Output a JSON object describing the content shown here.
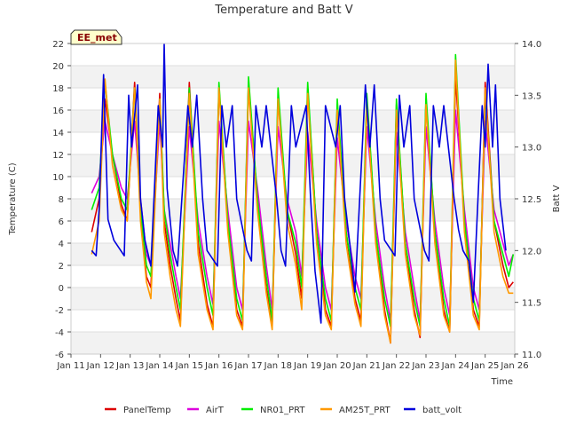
{
  "chart_data": {
    "type": "line",
    "title": "Temperature and Batt V",
    "xlabel": "Time",
    "ylabel": "Temperature (C)",
    "y2label": "Batt V",
    "site_badge": "EE_met",
    "ylim": [
      -6,
      22
    ],
    "y2lim": [
      11.0,
      14.0
    ],
    "xlim": [
      0,
      15
    ],
    "y_ticks": [
      -6,
      -4,
      -2,
      0,
      2,
      4,
      6,
      8,
      10,
      12,
      14,
      16,
      18,
      20,
      22
    ],
    "y2_ticks": [
      "11.0",
      "11.5",
      "12.0",
      "12.5",
      "13.0",
      "13.5",
      "14.0"
    ],
    "x_ticks": [
      "Jan 11",
      "Jan 12",
      "Jan 13",
      "Jan 14",
      "Jan 15",
      "Jan 16",
      "Jan 17",
      "Jan 18",
      "Jan 19",
      "Jan 20",
      "Jan 21",
      "Jan 22",
      "Jan 23",
      "Jan 24",
      "Jan 25",
      "Jan 26"
    ],
    "x_units": "days since Jan 11 00:00",
    "series": [
      {
        "name": "PanelTemp",
        "color": "#dd0000",
        "axis": "left",
        "x": [
          0.7,
          0.95,
          1.15,
          1.4,
          1.7,
          1.9,
          2.15,
          2.35,
          2.55,
          2.7,
          3.0,
          3.15,
          3.35,
          3.55,
          3.7,
          4.0,
          4.3,
          4.6,
          4.8,
          5.0,
          5.3,
          5.6,
          5.8,
          6.0,
          6.3,
          6.6,
          6.8,
          7.0,
          7.3,
          7.6,
          7.8,
          8.0,
          8.3,
          8.6,
          8.8,
          9.0,
          9.3,
          9.6,
          9.8,
          10.0,
          10.3,
          10.6,
          10.8,
          11.0,
          11.3,
          11.6,
          11.8,
          12.0,
          12.3,
          12.6,
          12.8,
          13.0,
          13.3,
          13.6,
          13.8,
          14.0,
          14.3,
          14.6,
          14.8,
          14.95
        ],
        "y": [
          5.0,
          8.0,
          17.0,
          12.0,
          7.5,
          6.0,
          18.5,
          7.0,
          1.0,
          0.0,
          17.5,
          6.0,
          2.0,
          -1.0,
          -3.0,
          18.5,
          4.0,
          -1.5,
          -3.5,
          18.0,
          6.0,
          -2.0,
          -3.5,
          18.5,
          8.0,
          0.0,
          -3.5,
          17.0,
          7.0,
          3.0,
          -1.0,
          18.0,
          5.0,
          -2.0,
          -3.5,
          16.5,
          5.0,
          -1.0,
          -3.0,
          17.0,
          5.0,
          -2.0,
          -5.0,
          16.5,
          4.0,
          -2.0,
          -4.5,
          17.0,
          5.0,
          -2.0,
          -4.0,
          19.0,
          6.0,
          -2.0,
          -3.5,
          18.5,
          6.0,
          2.0,
          0.0,
          0.5
        ]
      },
      {
        "name": "AirT",
        "color": "#dd00dd",
        "axis": "left",
        "x": [
          0.7,
          0.95,
          1.15,
          1.4,
          1.7,
          1.9,
          2.15,
          2.35,
          2.55,
          2.7,
          3.0,
          3.15,
          3.35,
          3.55,
          3.7,
          4.0,
          4.3,
          4.6,
          4.8,
          5.0,
          5.3,
          5.6,
          5.8,
          6.0,
          6.3,
          6.6,
          6.8,
          7.0,
          7.3,
          7.6,
          7.8,
          8.0,
          8.3,
          8.6,
          8.8,
          9.0,
          9.3,
          9.6,
          9.8,
          10.0,
          10.3,
          10.6,
          10.8,
          11.0,
          11.3,
          11.6,
          11.8,
          12.0,
          12.3,
          12.6,
          12.8,
          13.0,
          13.3,
          13.6,
          13.8,
          14.0,
          14.3,
          14.6,
          14.8,
          14.95
        ],
        "y": [
          8.5,
          10.0,
          15.0,
          12.0,
          9.0,
          8.0,
          15.0,
          8.0,
          3.0,
          2.0,
          15.0,
          7.0,
          4.0,
          1.0,
          -1.0,
          14.5,
          6.0,
          1.0,
          -1.5,
          15.0,
          7.0,
          0.0,
          -2.0,
          15.0,
          9.0,
          2.0,
          -2.0,
          14.5,
          8.0,
          5.0,
          1.0,
          14.0,
          6.0,
          0.0,
          -2.0,
          13.5,
          6.0,
          1.0,
          -1.0,
          14.5,
          6.0,
          0.0,
          -3.0,
          14.0,
          5.0,
          0.0,
          -3.0,
          14.5,
          6.0,
          0.0,
          -2.5,
          16.0,
          7.0,
          0.0,
          -2.0,
          15.0,
          7.0,
          4.0,
          2.0,
          3.0
        ]
      },
      {
        "name": "NR01_PRT",
        "color": "#00ee00",
        "axis": "left",
        "x": [
          0.7,
          0.95,
          1.15,
          1.4,
          1.7,
          1.9,
          2.15,
          2.35,
          2.55,
          2.7,
          3.0,
          3.15,
          3.35,
          3.55,
          3.7,
          4.0,
          4.3,
          4.6,
          4.8,
          5.0,
          5.3,
          5.6,
          5.8,
          6.0,
          6.3,
          6.6,
          6.8,
          7.0,
          7.3,
          7.6,
          7.8,
          8.0,
          8.3,
          8.6,
          8.8,
          9.0,
          9.3,
          9.6,
          9.8,
          10.0,
          10.3,
          10.6,
          10.8,
          11.0,
          11.3,
          11.6,
          11.8,
          12.0,
          12.3,
          12.6,
          12.8,
          13.0,
          13.3,
          13.6,
          13.8,
          14.0,
          14.3,
          14.6,
          14.8,
          14.95
        ],
        "y": [
          7.0,
          9.0,
          18.5,
          12.0,
          8.0,
          7.0,
          18.0,
          7.0,
          2.0,
          1.0,
          17.0,
          7.0,
          3.0,
          0.0,
          -2.0,
          18.0,
          5.0,
          0.0,
          -2.5,
          18.5,
          6.0,
          -1.0,
          -3.0,
          19.0,
          8.0,
          1.0,
          -3.0,
          18.0,
          7.0,
          4.0,
          0.0,
          18.5,
          5.0,
          -1.0,
          -3.0,
          17.0,
          5.0,
          0.0,
          -2.0,
          17.5,
          5.0,
          -1.0,
          -3.5,
          17.0,
          4.0,
          -1.0,
          -3.5,
          17.5,
          5.0,
          -1.0,
          -3.5,
          21.0,
          6.0,
          -1.0,
          -3.0,
          17.5,
          6.0,
          3.0,
          1.0,
          3.0
        ]
      },
      {
        "name": "AM25T_PRT",
        "color": "#ff9900",
        "axis": "left",
        "x": [
          0.7,
          0.95,
          1.15,
          1.4,
          1.7,
          1.9,
          2.15,
          2.35,
          2.55,
          2.7,
          3.0,
          3.15,
          3.35,
          3.55,
          3.7,
          4.0,
          4.3,
          4.6,
          4.8,
          5.0,
          5.3,
          5.6,
          5.8,
          6.0,
          6.3,
          6.6,
          6.8,
          7.0,
          7.3,
          7.6,
          7.8,
          8.0,
          8.3,
          8.6,
          8.8,
          9.0,
          9.3,
          9.6,
          9.8,
          10.0,
          10.3,
          10.6,
          10.8,
          11.0,
          11.3,
          11.6,
          11.8,
          12.0,
          12.3,
          12.6,
          12.8,
          13.0,
          13.3,
          13.6,
          13.8,
          14.0,
          14.3,
          14.6,
          14.8,
          14.95
        ],
        "y": [
          3.0,
          6.0,
          18.8,
          11.0,
          7.0,
          6.0,
          18.0,
          6.0,
          0.5,
          -1.0,
          17.0,
          5.0,
          1.0,
          -2.0,
          -3.5,
          17.5,
          3.0,
          -2.0,
          -3.8,
          18.0,
          5.0,
          -2.5,
          -3.8,
          18.0,
          7.0,
          -0.5,
          -3.8,
          17.0,
          6.0,
          2.0,
          -2.0,
          17.5,
          4.0,
          -2.5,
          -3.8,
          16.0,
          4.0,
          -1.5,
          -3.5,
          16.5,
          4.0,
          -2.5,
          -5.0,
          16.0,
          3.0,
          -2.5,
          -4.3,
          16.5,
          4.0,
          -2.5,
          -4.0,
          20.5,
          5.0,
          -2.5,
          -3.8,
          18.0,
          5.0,
          1.0,
          -0.5,
          -0.5
        ]
      },
      {
        "name": "batt_volt",
        "color": "#0000dd",
        "axis": "right",
        "x": [
          0.7,
          0.85,
          0.95,
          1.1,
          1.25,
          1.45,
          1.8,
          1.95,
          2.05,
          2.25,
          2.35,
          2.5,
          2.7,
          2.95,
          3.1,
          3.15,
          3.25,
          3.45,
          3.6,
          3.95,
          4.1,
          4.25,
          4.45,
          4.6,
          4.95,
          5.1,
          5.25,
          5.45,
          5.6,
          5.95,
          6.1,
          6.25,
          6.45,
          6.6,
          6.95,
          7.1,
          7.25,
          7.45,
          7.6,
          7.95,
          8.1,
          8.25,
          8.45,
          8.6,
          8.95,
          9.1,
          9.25,
          9.45,
          9.6,
          9.95,
          10.1,
          10.25,
          10.45,
          10.6,
          10.95,
          11.1,
          11.25,
          11.45,
          11.6,
          11.95,
          12.1,
          12.25,
          12.45,
          12.6,
          12.95,
          13.1,
          13.25,
          13.45,
          13.6,
          13.9,
          14.0,
          14.1,
          14.25,
          14.35,
          14.5,
          14.7
        ],
        "y": [
          12.0,
          11.95,
          12.4,
          13.7,
          12.3,
          12.1,
          11.95,
          13.5,
          13.0,
          13.6,
          12.5,
          12.1,
          11.85,
          13.4,
          13.0,
          14.0,
          12.6,
          12.0,
          11.85,
          13.4,
          13.0,
          13.5,
          12.5,
          12.0,
          11.85,
          13.4,
          13.0,
          13.4,
          12.5,
          12.0,
          11.9,
          13.4,
          13.0,
          13.4,
          12.5,
          12.0,
          11.85,
          13.4,
          13.0,
          13.4,
          12.5,
          11.8,
          11.3,
          13.4,
          13.0,
          13.4,
          12.5,
          12.0,
          11.6,
          13.6,
          13.0,
          13.6,
          12.5,
          12.1,
          11.95,
          13.5,
          13.0,
          13.4,
          12.5,
          12.0,
          11.9,
          13.4,
          13.0,
          13.4,
          12.5,
          12.2,
          12.0,
          11.9,
          11.5,
          13.4,
          13.0,
          13.8,
          13.0,
          13.6,
          12.5,
          12.0
        ]
      }
    ]
  }
}
